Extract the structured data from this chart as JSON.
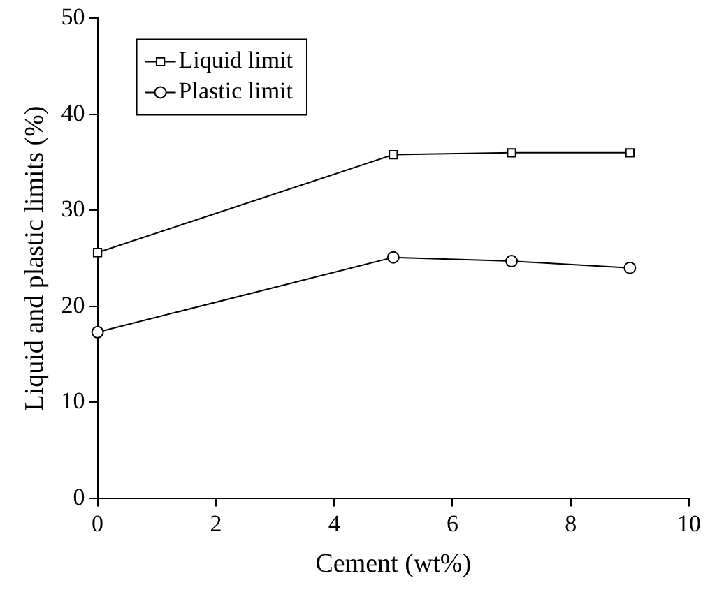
{
  "chart_data": {
    "type": "line",
    "xlabel": "Cement (wt%)",
    "ylabel": "Liquid and plastic limits (%)",
    "x": [
      0,
      5,
      7,
      9
    ],
    "series": [
      {
        "name": "Liquid limit",
        "color": "#000000",
        "marker": "square",
        "values": [
          25.6,
          35.8,
          36.0,
          36.0
        ]
      },
      {
        "name": "Plastic limit",
        "color": "#000000",
        "marker": "circle",
        "values": [
          17.3,
          25.1,
          24.7,
          24.0
        ]
      }
    ],
    "xlim": [
      0,
      10
    ],
    "xticks": [
      0,
      2,
      4,
      6,
      8,
      10
    ],
    "ylim": [
      0,
      50
    ],
    "yticks": [
      0,
      10,
      20,
      30,
      40,
      50
    ],
    "grid": false,
    "legend": "top left",
    "line_style": "solid"
  }
}
